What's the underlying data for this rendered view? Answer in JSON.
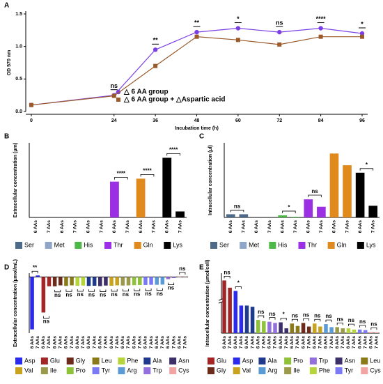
{
  "chart_data": [
    {
      "type": "line",
      "panel_label": "A",
      "xlabel": "Incubation time (h)",
      "ylabel": "OD 570 nm",
      "x": [
        0,
        24,
        36,
        48,
        60,
        72,
        84,
        96
      ],
      "xlim": [
        0,
        96
      ],
      "xticks": [
        0,
        24,
        36,
        48,
        60,
        72,
        84,
        96
      ],
      "ylim": [
        0,
        1.5
      ],
      "yticks": [
        {
          "value": 0,
          "label": "0.0"
        },
        0.5,
        {
          "value": 1,
          "label": "1.0"
        },
        1.5
      ],
      "series": [
        {
          "name": "△ 6 AA group",
          "color": "#7b3fe4",
          "marker": "circle",
          "values": [
            0.1,
            0.25,
            0.95,
            1.22,
            1.28,
            1.22,
            1.28,
            1.2
          ]
        },
        {
          "name": "△ 6 AA group + △Aspartic acid",
          "color": "#9a5a2a",
          "marker": "square",
          "values": [
            0.1,
            0.24,
            0.7,
            1.15,
            1.1,
            1.03,
            1.15,
            1.15
          ]
        }
      ],
      "significance": [
        null,
        "ns",
        "**",
        "**",
        "*",
        "ns",
        "****",
        "*"
      ]
    },
    {
      "type": "bar",
      "panel_label": "B",
      "ylabel": "Extracellular concentration (μm)",
      "categories": [
        "6 AAs",
        "7 AAs"
      ],
      "ylim": [
        0,
        250
      ],
      "series": [
        {
          "name": "Ser",
          "color": "#4d6a88",
          "values": [
            0,
            0
          ]
        },
        {
          "name": "Met",
          "color": "#8fa6c8",
          "values": [
            0,
            0
          ]
        },
        {
          "name": "His",
          "color": "#4cb847",
          "values": [
            0,
            0
          ]
        },
        {
          "name": "Thr",
          "color": "#9b2fe3",
          "values": [
            120,
            0
          ]
        },
        {
          "name": "Gln",
          "color": "#e0891d",
          "values": [
            130,
            0
          ]
        },
        {
          "name": "Lys",
          "color": "#000000",
          "values": [
            200,
            20
          ]
        }
      ],
      "significance": [
        null,
        null,
        null,
        "****",
        "****",
        "****"
      ]
    },
    {
      "type": "bar",
      "panel_label": "C",
      "ylabel": "Intracellular concentration (μl)",
      "categories": [
        "6 AAs",
        "7 AAs"
      ],
      "ylim": [
        0,
        350
      ],
      "series": [
        {
          "name": "Ser",
          "color": "#4d6a88",
          "values": [
            15,
            15
          ]
        },
        {
          "name": "Met",
          "color": "#8fa6c8",
          "values": [
            0,
            0
          ]
        },
        {
          "name": "His",
          "color": "#4cb847",
          "values": [
            10,
            3
          ]
        },
        {
          "name": "Thr",
          "color": "#9b2fe3",
          "values": [
            85,
            50
          ]
        },
        {
          "name": "Gln",
          "color": "#e0891d",
          "values": [
            300,
            245
          ]
        },
        {
          "name": "Lys",
          "color": "#000000",
          "values": [
            210,
            55
          ]
        }
      ],
      "significance": [
        "ns",
        null,
        "*",
        "ns",
        null,
        "*"
      ]
    },
    {
      "type": "bar",
      "panel_label": "D",
      "ylabel": "Extracellular concentration (μmol/mL)",
      "categories": [
        "6 AAs",
        "7 AAs"
      ],
      "ylim": [
        -3000,
        200
      ],
      "series": [
        {
          "name": "Asp",
          "color": "#2b2bf0",
          "values": [
            -2800,
            80
          ]
        },
        {
          "name": "Glu",
          "color": "#a32626",
          "values": [
            -1900,
            -500
          ]
        },
        {
          "name": "Gly",
          "color": "#6b2a1a",
          "values": [
            -500,
            -450
          ]
        },
        {
          "name": "Leu",
          "color": "#8a7a1a",
          "values": [
            -480,
            -450
          ]
        },
        {
          "name": "Phe",
          "color": "#b5d53a",
          "values": [
            -470,
            -460
          ]
        },
        {
          "name": "Ala",
          "color": "#1f3a8a",
          "values": [
            -480,
            -470
          ]
        },
        {
          "name": "Asn",
          "color": "#3c2f6a",
          "values": [
            -490,
            -460
          ]
        },
        {
          "name": "Val",
          "color": "#c9a21e",
          "values": [
            -470,
            -450
          ]
        },
        {
          "name": "Ile",
          "color": "#9a9a4a",
          "values": [
            -460,
            -450
          ]
        },
        {
          "name": "Pro",
          "color": "#8fc23a",
          "values": [
            -440,
            -430
          ]
        },
        {
          "name": "Tyr",
          "color": "#7a7af5",
          "values": [
            -430,
            -420
          ]
        },
        {
          "name": "Arg",
          "color": "#5b9bd5",
          "values": [
            -420,
            -410
          ]
        },
        {
          "name": "Trp",
          "color": "#9370db",
          "values": [
            -120,
            -60
          ]
        },
        {
          "name": "Cys",
          "color": "#f2a3a3",
          "values": [
            20,
            10
          ]
        }
      ],
      "significance": [
        "**",
        "ns",
        "ns",
        "ns",
        "ns",
        "ns",
        "ns",
        "ns",
        "ns",
        "ns",
        "ns",
        "ns",
        "ns",
        "ns"
      ]
    },
    {
      "type": "bar",
      "panel_label": "E",
      "ylabel": "Intracellular concentration (μmol/cell)",
      "categories": [
        "6 AAs",
        "7 AAs"
      ],
      "ylim": [
        0,
        2000
      ],
      "ybreak": [
        250,
        400
      ],
      "series": [
        {
          "name": "Glu",
          "color": "#a32626",
          "values": [
            1550,
            1100
          ]
        },
        {
          "name": "Asp",
          "color": "#2b2bf0",
          "values": [
            900,
            230
          ]
        },
        {
          "name": "Ala",
          "color": "#1f3a8a",
          "values": [
            230,
            220
          ]
        },
        {
          "name": "Pro",
          "color": "#8fc23a",
          "values": [
            110,
            100
          ]
        },
        {
          "name": "Trp",
          "color": "#9370db",
          "values": [
            95,
            85
          ]
        },
        {
          "name": "Asn",
          "color": "#3c2f6a",
          "values": [
            90,
            40
          ]
        },
        {
          "name": "Leu",
          "color": "#8a7a1a",
          "values": [
            80,
            60
          ]
        },
        {
          "name": "Gly",
          "color": "#6b2a1a",
          "values": [
            85,
            55
          ]
        },
        {
          "name": "Val",
          "color": "#c9a21e",
          "values": [
            80,
            55
          ]
        },
        {
          "name": "Arg",
          "color": "#5b9bd5",
          "values": [
            75,
            50
          ]
        },
        {
          "name": "Ile",
          "color": "#9a9a4a",
          "values": [
            50,
            40
          ]
        },
        {
          "name": "Phe",
          "color": "#b5d53a",
          "values": [
            40,
            30
          ]
        },
        {
          "name": "Tyr",
          "color": "#7a7af5",
          "values": [
            30,
            25
          ]
        },
        {
          "name": "Cys",
          "color": "#f2a3a3",
          "values": [
            10,
            8
          ]
        }
      ],
      "significance": [
        "ns",
        "*",
        null,
        "ns",
        "ns",
        "*",
        "ns",
        "ns",
        "ns",
        "ns",
        "ns",
        "ns",
        "ns",
        "ns"
      ]
    }
  ]
}
